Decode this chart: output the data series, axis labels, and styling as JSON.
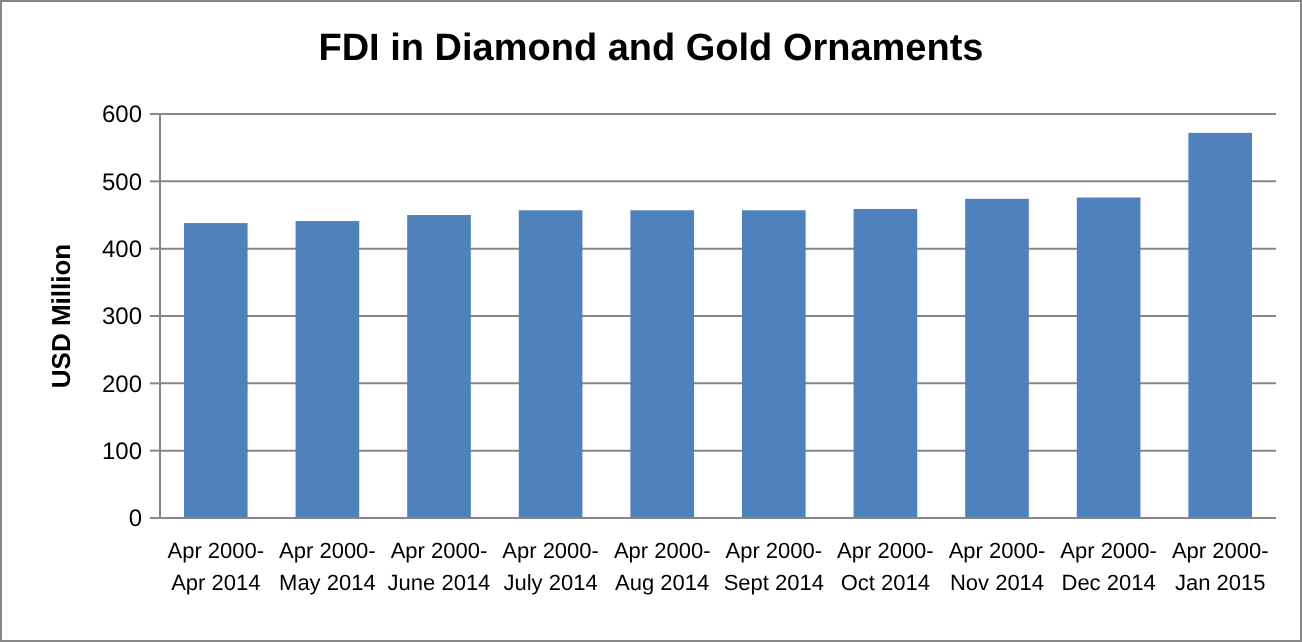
{
  "chart_data": {
    "type": "bar",
    "title": "FDI in Diamond and Gold Ornaments",
    "ylabel": "USD Million",
    "categories": [
      "Apr 2000-Apr 2014",
      "Apr 2000-May 2014",
      "Apr 2000-June 2014",
      "Apr 2000-July 2014",
      "Apr 2000-Aug 2014",
      "Apr 2000-Sept 2014",
      "Apr 2000-Oct 2014",
      "Apr 2000-Nov 2014",
      "Apr 2000-Dec 2014",
      "Apr 2000-Jan 2015"
    ],
    "values": [
      438,
      441,
      450,
      457,
      457,
      457,
      459,
      474,
      476,
      572
    ],
    "color": "#4f81bd",
    "ylim": [
      0,
      600
    ],
    "yticks": [
      0,
      100,
      200,
      300,
      400,
      500,
      600
    ],
    "grid": "y"
  }
}
